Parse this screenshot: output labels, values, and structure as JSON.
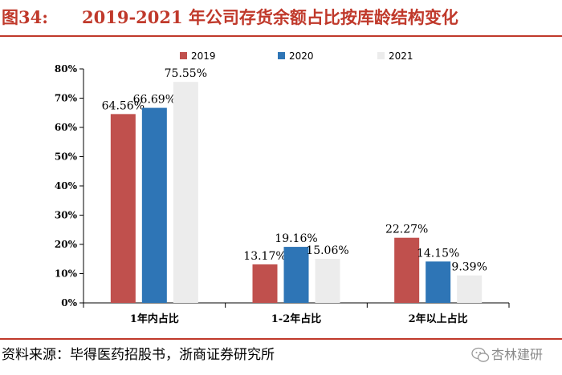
{
  "header": {
    "figure_label": "图34:",
    "title": "2019-2021 年公司存货余额占比按库龄结构变化"
  },
  "footer": {
    "source": "资料来源：毕得医药招股书，浙商证券研究所",
    "watermark": "杏林建研"
  },
  "colors": {
    "accent": "#c0392b",
    "series_2019": "#c0504d",
    "series_2020": "#2e75b6",
    "series_2021": "#ececec"
  },
  "chart_data": {
    "type": "bar",
    "categories": [
      "1年内占比",
      "1-2年占比",
      "2年以上占比"
    ],
    "series": [
      {
        "name": "2019",
        "values": [
          64.56,
          13.17,
          22.27
        ],
        "labels": [
          "64.56%",
          "13.17%",
          "22.27%"
        ]
      },
      {
        "name": "2020",
        "values": [
          66.69,
          19.16,
          14.15
        ],
        "labels": [
          "66.69%",
          "19.16%",
          "14.15%"
        ]
      },
      {
        "name": "2021",
        "values": [
          75.55,
          15.06,
          9.39
        ],
        "labels": [
          "75.55%",
          "15.06%",
          "9.39%"
        ]
      }
    ],
    "ylim": [
      0,
      80
    ],
    "yticks": [
      0,
      10,
      20,
      30,
      40,
      50,
      60,
      70,
      80
    ],
    "ytick_labels": [
      "0%",
      "10%",
      "20%",
      "30%",
      "40%",
      "50%",
      "60%",
      "70%",
      "80%"
    ],
    "legend": "top",
    "grid": false,
    "xlabel": "",
    "ylabel": ""
  }
}
